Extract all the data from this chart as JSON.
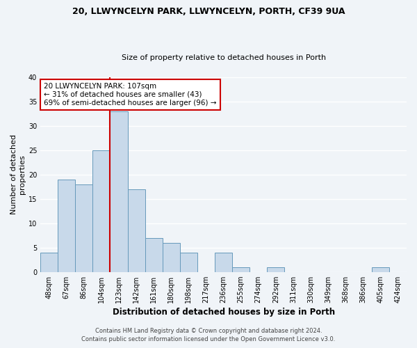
{
  "title": "20, LLWYNCELYN PARK, LLWYNCELYN, PORTH, CF39 9UA",
  "subtitle": "Size of property relative to detached houses in Porth",
  "xlabel": "Distribution of detached houses by size in Porth",
  "ylabel": "Number of detached\nproperties",
  "bar_color": "#c8d9ea",
  "bar_edge_color": "#6699bb",
  "bins": [
    "48sqm",
    "67sqm",
    "86sqm",
    "104sqm",
    "123sqm",
    "142sqm",
    "161sqm",
    "180sqm",
    "198sqm",
    "217sqm",
    "236sqm",
    "255sqm",
    "274sqm",
    "292sqm",
    "311sqm",
    "330sqm",
    "349sqm",
    "368sqm",
    "386sqm",
    "405sqm",
    "424sqm"
  ],
  "counts": [
    4,
    19,
    18,
    25,
    33,
    17,
    7,
    6,
    4,
    0,
    4,
    1,
    0,
    1,
    0,
    0,
    0,
    0,
    0,
    1,
    0
  ],
  "vline_x": 3.5,
  "vline_color": "#cc0000",
  "annotation_line1": "20 LLWYNCELYN PARK: 107sqm",
  "annotation_line2": "← 31% of detached houses are smaller (43)",
  "annotation_line3": "69% of semi-detached houses are larger (96) →",
  "annotation_box_color": "#ffffff",
  "annotation_box_edge": "#cc0000",
  "ylim": [
    0,
    40
  ],
  "yticks": [
    0,
    5,
    10,
    15,
    20,
    25,
    30,
    35,
    40
  ],
  "footer1": "Contains HM Land Registry data © Crown copyright and database right 2024.",
  "footer2": "Contains public sector information licensed under the Open Government Licence v3.0.",
  "background_color": "#f0f4f8",
  "grid_color": "#ffffff",
  "title_fontsize": 9,
  "subtitle_fontsize": 8,
  "tick_fontsize": 7,
  "ylabel_fontsize": 8,
  "xlabel_fontsize": 8.5,
  "footer_fontsize": 6
}
